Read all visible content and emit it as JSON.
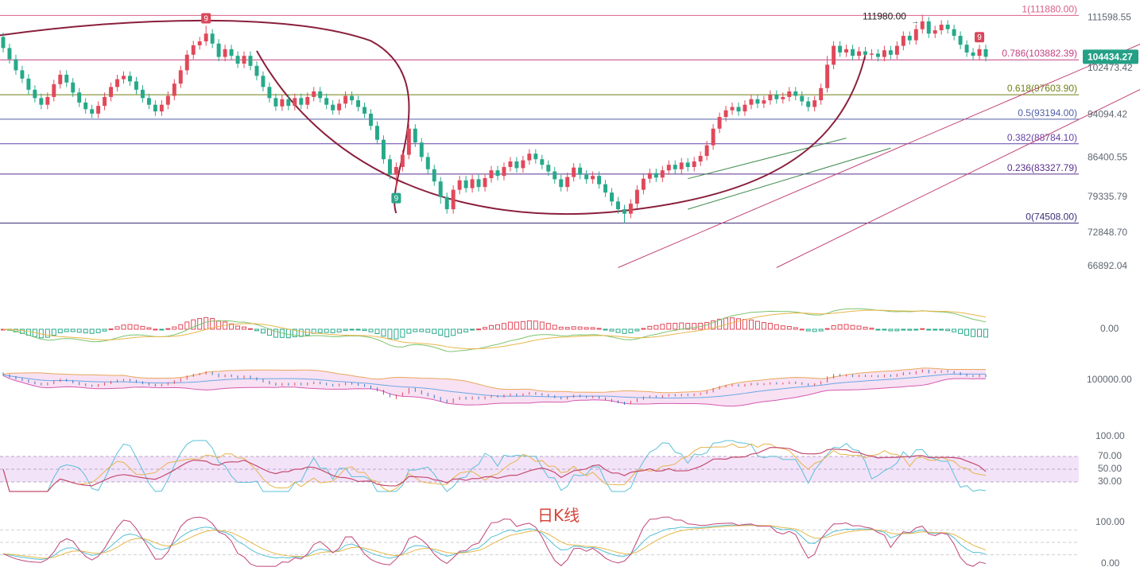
{
  "chart_data": {
    "type": "candlestick",
    "title": "日K线",
    "colors": {
      "up": "#e0495a",
      "down": "#26a98a",
      "ma_fast": "#6aa7e6",
      "ma_slow": "#e9a75a",
      "curve": "#8a1f3b",
      "channel": "#c2457a",
      "fib_line": "#7b6bb5"
    },
    "price_axis": {
      "ticks": [
        "111598.55",
        "102473.42",
        "94094.42",
        "86400.55",
        "79335.79",
        "72848.70",
        "66892.04"
      ],
      "range": [
        66000,
        113500
      ],
      "current_price": "104434.27",
      "high_annotation": "111980.00"
    },
    "fibonacci": [
      {
        "label": "1(111880.00)",
        "price": 111880.0,
        "color": "#d95f86"
      },
      {
        "label": "0.786(103882.39)",
        "price": 103882.39,
        "color": "#c23f7f"
      },
      {
        "label": "0.618(97603.90)",
        "price": 97603.9,
        "color": "#6f7f14"
      },
      {
        "label": "0.5(93194.00)",
        "price": 93194.0,
        "color": "#5160a8"
      },
      {
        "label": "0.382(88784.10)",
        "price": 88784.1,
        "color": "#6640a6"
      },
      {
        "label": "0.236(83327.79)",
        "price": 83327.79,
        "color": "#5a2f8c"
      },
      {
        "label": "0(74508.00)",
        "price": 74508.0,
        "color": "#3b2f7a"
      }
    ],
    "td_markers": [
      {
        "label": "9",
        "index": 32,
        "kind": "sell"
      },
      {
        "label": "9",
        "index": 62,
        "kind": "buy"
      },
      {
        "label": "9",
        "index": 154,
        "kind": "sell"
      }
    ],
    "candles": [
      [
        108000,
        106000,
        108800,
        105200
      ],
      [
        106000,
        104000,
        106800,
        103200
      ],
      [
        104000,
        102000,
        104800,
        101200
      ],
      [
        102000,
        100500,
        102800,
        99700
      ],
      [
        100500,
        98500,
        101300,
        97700
      ],
      [
        98500,
        97000,
        99300,
        96200
      ],
      [
        97000,
        95800,
        97800,
        95000
      ],
      [
        95800,
        97200,
        98000,
        95000
      ],
      [
        97200,
        99500,
        100300,
        96400
      ],
      [
        99500,
        101200,
        102000,
        98700
      ],
      [
        101200,
        99800,
        102000,
        99000
      ],
      [
        99800,
        98000,
        100600,
        97200
      ],
      [
        98000,
        96200,
        98800,
        95400
      ],
      [
        96200,
        95000,
        97000,
        94200
      ],
      [
        95000,
        94200,
        95800,
        93400
      ],
      [
        94200,
        95600,
        96400,
        93400
      ],
      [
        95600,
        97200,
        98000,
        94800
      ],
      [
        97200,
        99000,
        99800,
        96400
      ],
      [
        99000,
        100400,
        101200,
        98200
      ],
      [
        100400,
        101000,
        101800,
        99600
      ],
      [
        101000,
        100000,
        101800,
        99200
      ],
      [
        100000,
        98500,
        100800,
        97700
      ],
      [
        98500,
        97000,
        99300,
        96200
      ],
      [
        97000,
        95800,
        97800,
        95000
      ],
      [
        95800,
        94600,
        96600,
        93800
      ],
      [
        94600,
        95800,
        96600,
        93800
      ],
      [
        95800,
        97400,
        98200,
        95000
      ],
      [
        97400,
        99600,
        100400,
        96600
      ],
      [
        99600,
        102000,
        102800,
        98800
      ],
      [
        102000,
        104800,
        105600,
        101200
      ],
      [
        104800,
        106500,
        107300,
        104000
      ],
      [
        106500,
        107200,
        108000,
        105700
      ],
      [
        107200,
        108600,
        110000,
        106400
      ],
      [
        108600,
        106800,
        109400,
        106000
      ],
      [
        106800,
        104400,
        107600,
        103600
      ],
      [
        104400,
        105800,
        106600,
        103600
      ],
      [
        105800,
        104600,
        106600,
        103800
      ],
      [
        104600,
        103200,
        105400,
        102400
      ],
      [
        103200,
        104600,
        105400,
        102400
      ],
      [
        104600,
        102800,
        105400,
        102000
      ],
      [
        102800,
        101000,
        103600,
        100200
      ],
      [
        101000,
        99000,
        101800,
        98200
      ],
      [
        99000,
        97000,
        99800,
        96200
      ],
      [
        97000,
        95500,
        97800,
        94700
      ],
      [
        95500,
        96800,
        97600,
        94700
      ],
      [
        96800,
        95600,
        97600,
        94800
      ],
      [
        95600,
        97000,
        97800,
        94800
      ],
      [
        97000,
        95800,
        97800,
        95000
      ],
      [
        95800,
        97200,
        98000,
        95000
      ],
      [
        97200,
        98200,
        99000,
        96400
      ],
      [
        98200,
        97000,
        99000,
        96200
      ],
      [
        97000,
        95800,
        97800,
        95000
      ],
      [
        95800,
        94800,
        96600,
        94000
      ],
      [
        94800,
        96000,
        96800,
        94000
      ],
      [
        96000,
        97400,
        98200,
        95200
      ],
      [
        97400,
        96600,
        98200,
        95800
      ],
      [
        96600,
        95400,
        97400,
        94600
      ],
      [
        95400,
        94200,
        96200,
        93400
      ],
      [
        94200,
        92000,
        95000,
        91200
      ],
      [
        92000,
        89500,
        92800,
        88700
      ],
      [
        89500,
        86000,
        90300,
        85200
      ],
      [
        86000,
        83200,
        86800,
        82400
      ],
      [
        83200,
        84600,
        85400,
        80500
      ],
      [
        84600,
        86800,
        87600,
        83800
      ],
      [
        86800,
        91500,
        92300,
        86000
      ],
      [
        91500,
        89000,
        92300,
        88200
      ],
      [
        89000,
        86400,
        89800,
        85600
      ],
      [
        86400,
        84200,
        87200,
        83400
      ],
      [
        84200,
        82000,
        85000,
        81200
      ],
      [
        82000,
        79200,
        82800,
        78000
      ],
      [
        79200,
        77000,
        80000,
        76200
      ],
      [
        77000,
        80500,
        81300,
        76200
      ],
      [
        80500,
        82200,
        83000,
        79700
      ],
      [
        82200,
        80800,
        83000,
        80000
      ],
      [
        80800,
        82400,
        83200,
        80000
      ],
      [
        82400,
        81000,
        83200,
        80200
      ],
      [
        81000,
        82600,
        83400,
        80200
      ],
      [
        82600,
        84000,
        84800,
        81800
      ],
      [
        84000,
        83000,
        84800,
        82200
      ],
      [
        83000,
        84600,
        85400,
        82200
      ],
      [
        84600,
        85600,
        86400,
        83800
      ],
      [
        85600,
        84400,
        86400,
        83600
      ],
      [
        84400,
        85800,
        86600,
        83600
      ],
      [
        85800,
        87000,
        87800,
        85000
      ],
      [
        87000,
        86000,
        87800,
        85200
      ],
      [
        86000,
        85000,
        86800,
        84200
      ],
      [
        85000,
        83800,
        85800,
        83000
      ],
      [
        83800,
        82400,
        84600,
        81600
      ],
      [
        82400,
        81000,
        83200,
        80200
      ],
      [
        81000,
        82800,
        83600,
        80200
      ],
      [
        82800,
        84500,
        85300,
        82000
      ],
      [
        84500,
        83200,
        85300,
        82400
      ],
      [
        83200,
        82400,
        84000,
        81600
      ],
      [
        82400,
        83000,
        83800,
        81600
      ],
      [
        83000,
        81500,
        83800,
        80700
      ],
      [
        81500,
        80000,
        82300,
        79200
      ],
      [
        80000,
        78400,
        80800,
        77600
      ],
      [
        78400,
        77000,
        79200,
        76200
      ],
      [
        77000,
        76200,
        77800,
        74508
      ],
      [
        76200,
        78000,
        78800,
        75400
      ],
      [
        78000,
        80500,
        81300,
        77200
      ],
      [
        80500,
        82500,
        83300,
        79700
      ],
      [
        82500,
        83500,
        84300,
        81700
      ],
      [
        83500,
        82700,
        84300,
        81900
      ],
      [
        82700,
        84000,
        84800,
        81900
      ],
      [
        84000,
        85000,
        85800,
        83200
      ],
      [
        85000,
        84200,
        85800,
        83400
      ],
      [
        84200,
        85400,
        86200,
        83400
      ],
      [
        85400,
        84600,
        86200,
        83800
      ],
      [
        84600,
        85600,
        86400,
        83800
      ],
      [
        85600,
        86600,
        87400,
        84800
      ],
      [
        86600,
        88500,
        89300,
        85800
      ],
      [
        88500,
        91500,
        92300,
        87700
      ],
      [
        91500,
        93600,
        94400,
        90700
      ],
      [
        93600,
        94800,
        95600,
        92800
      ],
      [
        94800,
        95400,
        96200,
        94000
      ],
      [
        95400,
        94600,
        96200,
        93800
      ],
      [
        94600,
        95800,
        96600,
        93800
      ],
      [
        95800,
        96800,
        97600,
        95000
      ],
      [
        96800,
        96000,
        97600,
        95200
      ],
      [
        96000,
        96600,
        97400,
        95200
      ],
      [
        96600,
        97600,
        98400,
        95800
      ],
      [
        97600,
        96800,
        98400,
        96000
      ],
      [
        96800,
        97200,
        98000,
        96000
      ],
      [
        97200,
        98200,
        99000,
        96400
      ],
      [
        98200,
        97400,
        99000,
        96600
      ],
      [
        97400,
        96400,
        98200,
        95600
      ],
      [
        96400,
        95400,
        97200,
        94600
      ],
      [
        95400,
        96600,
        97400,
        94600
      ],
      [
        96600,
        98800,
        99600,
        95800
      ],
      [
        98800,
        103000,
        104600,
        98000
      ],
      [
        103000,
        106400,
        107200,
        102200
      ],
      [
        106400,
        105200,
        107200,
        104400
      ],
      [
        105200,
        105800,
        106600,
        104400
      ],
      [
        105800,
        104600,
        106600,
        103800
      ],
      [
        104600,
        105400,
        106200,
        103800
      ],
      [
        105400,
        104800,
        106200,
        104000
      ],
      [
        104800,
        105000,
        105800,
        104000
      ],
      [
        105000,
        104400,
        105800,
        103600
      ],
      [
        104400,
        105600,
        106400,
        103600
      ],
      [
        105600,
        104800,
        106400,
        104000
      ],
      [
        104800,
        106400,
        107200,
        104000
      ],
      [
        106400,
        108200,
        109000,
        105600
      ],
      [
        108200,
        107400,
        109000,
        106600
      ],
      [
        107400,
        109400,
        110200,
        106600
      ],
      [
        109400,
        110800,
        111980,
        108600
      ],
      [
        110800,
        108600,
        111600,
        107800
      ],
      [
        108600,
        109200,
        110000,
        107800
      ],
      [
        109200,
        110200,
        111000,
        108400
      ],
      [
        110200,
        109400,
        111000,
        108600
      ],
      [
        109400,
        108200,
        110200,
        107400
      ],
      [
        108200,
        106600,
        109000,
        105800
      ],
      [
        106600,
        105200,
        107400,
        104400
      ],
      [
        105200,
        104600,
        106000,
        103800
      ],
      [
        104600,
        105800,
        106600,
        103800
      ],
      [
        105800,
        104434,
        106600,
        103600
      ]
    ],
    "channels": [
      {
        "name": "",
        "p1": [
          97,
          66500
        ],
        "p2": [
          190,
          111900
        ]
      },
      {
        "name": "",
        "p1": [
          122,
          66500
        ],
        "p2": [
          190,
          104500
        ]
      },
      {
        "name": "",
        "p1": [
          108,
          82500
        ],
        "p2": [
          133,
          89800
        ]
      },
      {
        "name": "",
        "p1": [
          108,
          77000
        ],
        "p2": [
          140,
          88000
        ]
      }
    ],
    "macd": {
      "zero_label": "0.00"
    },
    "bollinger": {
      "label": "100000.00"
    },
    "rsi": {
      "ticks": [
        "100.00",
        "70.00",
        "50.00",
        "30.00"
      ]
    },
    "kdj": {
      "ticks": [
        "100.00",
        "0.00"
      ]
    }
  }
}
